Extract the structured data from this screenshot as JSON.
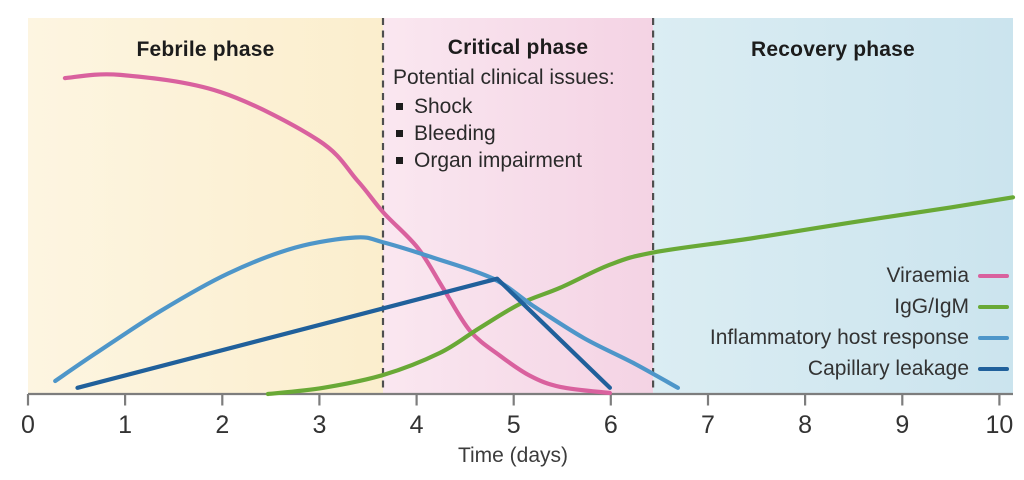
{
  "figure": {
    "description": "Phases of dengue illness with curves of viraemia, antibody response, inflammatory host response and capillary leakage over time"
  },
  "chart_data": {
    "type": "line",
    "title": "",
    "xlabel": "Time (days)",
    "ylabel": "",
    "y_units": "relative level (arbitrary units, no y-axis shown)",
    "xlim": [
      0,
      10.14
    ],
    "ylim": [
      0,
      1
    ],
    "x_ticks": [
      0,
      1,
      2,
      3,
      4,
      5,
      6,
      7,
      8,
      9,
      10
    ],
    "grid": false,
    "legend_position": "right-middle-inside",
    "axis_color": "#7d7d7d",
    "tick_label_color": "#333333",
    "divider_color": "#4f4f4f",
    "dividers": [
      3.655,
      6.435
    ],
    "phases": [
      {
        "label": "Febrile phase",
        "x_start": 0,
        "x_end": 3.655,
        "color_left": "#fdf5e1",
        "color_right": "#fbeecd"
      },
      {
        "label": "Critical phase",
        "x_start": 3.655,
        "x_end": 6.435,
        "color_left": "#fae7f0",
        "color_right": "#f4d3e4"
      },
      {
        "label": "Recovery phase",
        "x_start": 6.435,
        "x_end": 10.14,
        "color_left": "#dbedf3",
        "color_right": "#cbe4ee"
      }
    ],
    "annotation": {
      "heading": "Potential clinical issues:",
      "bullets": [
        "Shock",
        "Bleeding",
        "Organ impairment"
      ]
    },
    "series": [
      {
        "name": "Viraemia",
        "color": "#d9619e",
        "smooth": true,
        "points": [
          [
            0.38,
            0.975
          ],
          [
            0.95,
            0.985
          ],
          [
            1.98,
            0.932
          ],
          [
            2.99,
            0.783
          ],
          [
            3.39,
            0.659
          ],
          [
            3.66,
            0.56
          ],
          [
            4.01,
            0.452
          ],
          [
            4.27,
            0.328
          ],
          [
            4.55,
            0.195
          ],
          [
            4.86,
            0.118
          ],
          [
            5.17,
            0.056
          ],
          [
            5.48,
            0.022
          ],
          [
            5.99,
            0.003
          ]
        ]
      },
      {
        "name": "IgG/IgM",
        "color": "#69a936",
        "smooth": true,
        "points": [
          [
            2.47,
            0.0
          ],
          [
            3.04,
            0.019
          ],
          [
            3.66,
            0.059
          ],
          [
            4.24,
            0.127
          ],
          [
            4.65,
            0.204
          ],
          [
            5.07,
            0.279
          ],
          [
            5.48,
            0.328
          ],
          [
            5.99,
            0.399
          ],
          [
            6.44,
            0.437
          ],
          [
            7.44,
            0.48
          ],
          [
            8.47,
            0.529
          ],
          [
            9.5,
            0.576
          ],
          [
            10.14,
            0.607
          ]
        ]
      },
      {
        "name": "Inflammatory host response",
        "color": "#4e96c9",
        "smooth": true,
        "points": [
          [
            0.28,
            0.04
          ],
          [
            0.69,
            0.124
          ],
          [
            1.37,
            0.257
          ],
          [
            2.06,
            0.372
          ],
          [
            2.75,
            0.452
          ],
          [
            3.37,
            0.483
          ],
          [
            3.66,
            0.468
          ],
          [
            4.17,
            0.421
          ],
          [
            4.79,
            0.356
          ],
          [
            5.2,
            0.272
          ],
          [
            5.72,
            0.173
          ],
          [
            6.23,
            0.096
          ],
          [
            6.69,
            0.019
          ]
        ]
      },
      {
        "name": "Capillary leakage",
        "color": "#20609b",
        "smooth": false,
        "points": [
          [
            0.51,
            0.019
          ],
          [
            4.83,
            0.356
          ],
          [
            5.99,
            0.019
          ]
        ]
      }
    ]
  }
}
